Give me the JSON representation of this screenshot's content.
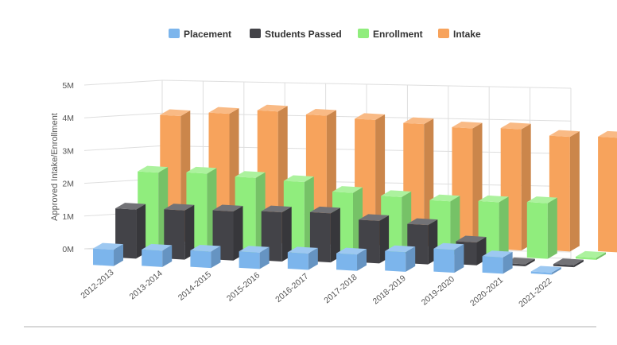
{
  "chart_data": {
    "type": "bar",
    "title": "",
    "xlabel": "",
    "ylabel": "Approved Intake/Enrollment",
    "ylim": [
      0,
      5000000
    ],
    "yticks": [
      "0M",
      "1M",
      "2M",
      "3M",
      "4M",
      "5M"
    ],
    "grid": true,
    "legend_position": "top-center",
    "categories": [
      "2012-2013",
      "2013-2014",
      "2014-2015",
      "2015-2016",
      "2016-2017",
      "2017-2018",
      "2018-2019",
      "2019-2020",
      "2020-2021",
      "2021-2022"
    ],
    "series": [
      {
        "name": "Placement",
        "color": "#7cb5ec",
        "values": [
          500000,
          500000,
          500000,
          500000,
          500000,
          500000,
          600000,
          700000,
          500000,
          0
        ]
      },
      {
        "name": "Students Passed",
        "color": "#434348",
        "values": [
          1500000,
          1500000,
          1500000,
          1500000,
          1500000,
          1300000,
          1200000,
          700000,
          0,
          0
        ]
      },
      {
        "name": "Enrollment",
        "color": "#90ed7d",
        "values": [
          2400000,
          2400000,
          2300000,
          2200000,
          1900000,
          1800000,
          1700000,
          1700000,
          1700000,
          0
        ]
      },
      {
        "name": "Intake",
        "color": "#f7a35c",
        "values": [
          3900000,
          4000000,
          4100000,
          4000000,
          3900000,
          3800000,
          3700000,
          3700000,
          3500000,
          3500000
        ]
      }
    ]
  }
}
